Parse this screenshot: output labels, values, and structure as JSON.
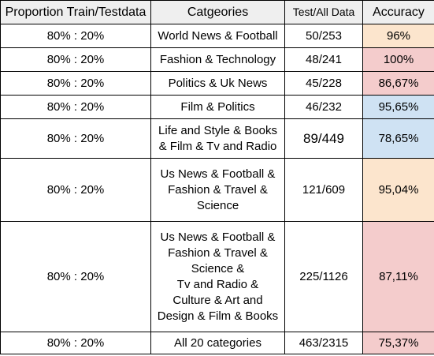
{
  "headers": {
    "proportion": "Proportion Train/Testdata",
    "categories": "Catgeories",
    "test_all": "Test/All Data",
    "accuracy": "Accuracy"
  },
  "colors": {
    "header_bg": "#efefef",
    "orange": "#fce5cd",
    "red": "#f4cccc",
    "blue": "#cfe2f3"
  },
  "rows": [
    {
      "proportion": "80% : 20%",
      "categories": [
        "World News & Football"
      ],
      "test_all": "50/253",
      "accuracy": "96%",
      "color": "orange"
    },
    {
      "proportion": "80% : 20%",
      "categories": [
        "Fashion & Technology"
      ],
      "test_all": "48/241",
      "accuracy": "100%",
      "color": "red"
    },
    {
      "proportion": "80% : 20%",
      "categories": [
        "Politics & Uk News"
      ],
      "test_all": "45/228",
      "accuracy": "86,67%",
      "color": "red"
    },
    {
      "proportion": "80% : 20%",
      "categories": [
        "Film & Politics"
      ],
      "test_all": "46/232",
      "accuracy": "95,65%",
      "color": "blue"
    },
    {
      "proportion": "80% : 20%",
      "categories": [
        "Life and Style & Books",
        "& Film & Tv and Radio"
      ],
      "test_all": "89/449",
      "accuracy": "78,65%",
      "color": "blue"
    },
    {
      "proportion": "80% : 20%",
      "categories": [
        "Us News & Football &",
        "Fashion & Travel &",
        "Science"
      ],
      "test_all": "121/609",
      "accuracy": "95,04%",
      "color": "orange"
    },
    {
      "proportion": "80% : 20%",
      "categories": [
        "Us News & Football &",
        "Fashion & Travel &",
        "Science &",
        "Tv and Radio &",
        "Culture & Art and",
        "Design & Film & Books"
      ],
      "test_all": "225/1126",
      "accuracy": "87,11%",
      "color": "red"
    },
    {
      "proportion": "80% : 20%",
      "categories": [
        "All 20 categories"
      ],
      "test_all": "463/2315",
      "accuracy": "75,37%",
      "color": "red"
    }
  ]
}
